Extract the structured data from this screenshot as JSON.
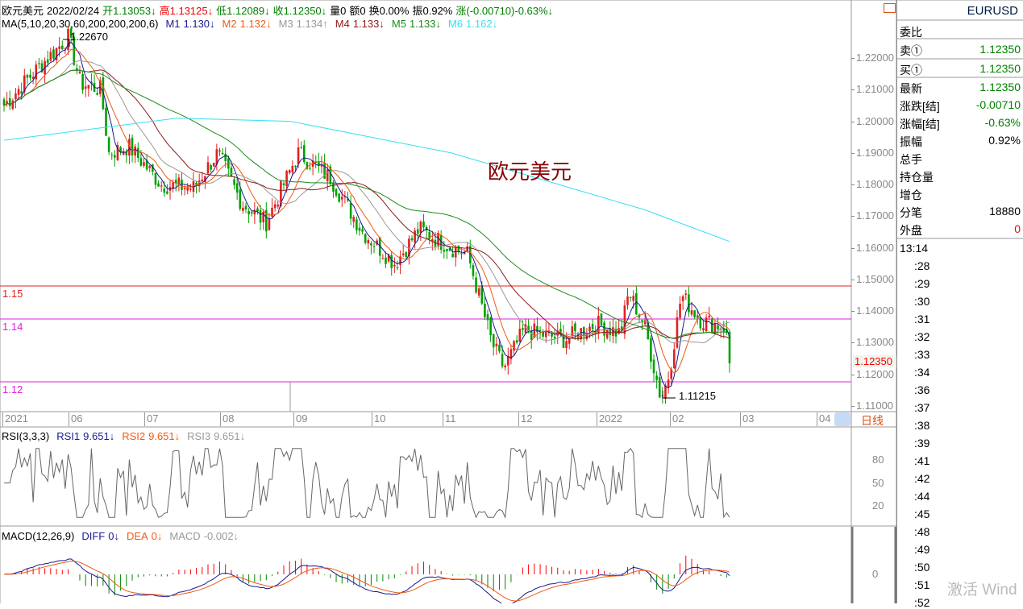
{
  "header": {
    "name": "欧元美元",
    "date": "2022/02/24",
    "open_label": "开",
    "open": "1.13053↓",
    "high_label": "高",
    "high": "1.13125↓",
    "low_label": "低",
    "low": "1.12089↓",
    "close_label": "收",
    "close": "1.12350↓",
    "volume": "量0",
    "amount": "额0",
    "turnover": "换0.00%",
    "amplitude": "振0.92%",
    "change_label": "涨",
    "change": "(-0.00710)-0.63%↓"
  },
  "ma": {
    "label": "MA(5,10,20,30,60,200,200,200,6)",
    "items": [
      {
        "name": "M1",
        "value": "1.130↓",
        "color": "#1a1a8c"
      },
      {
        "name": "M2",
        "value": "1.132↓",
        "color": "#f05a14"
      },
      {
        "name": "M3",
        "value": "1.134↑",
        "color": "#999999"
      },
      {
        "name": "M4",
        "value": "1.133↓",
        "color": "#8b1a1a"
      },
      {
        "name": "M5",
        "value": "1.133↓",
        "color": "#1a8c1a"
      },
      {
        "name": "M6",
        "value": "1.162↓",
        "color": "#33e0f0"
      }
    ]
  },
  "rsi": {
    "label": "RSI(3,3,3)",
    "items": [
      {
        "name": "RSI1",
        "value": "9.651↓",
        "color": "#1a1a8c"
      },
      {
        "name": "RSI2",
        "value": "9.651↓",
        "color": "#f05a14"
      },
      {
        "name": "RSI3",
        "value": "9.651↓",
        "color": "#999999"
      }
    ],
    "ticks": [
      "80",
      "50",
      "20"
    ]
  },
  "macd": {
    "label": "MACD(12,26,9)",
    "items": [
      {
        "name": "DIFF",
        "value": "0↓",
        "color": "#1a1a8c"
      },
      {
        "name": "DEA",
        "value": "0↓",
        "color": "#f05a14"
      },
      {
        "name": "MACD",
        "value": "-0.002↓",
        "color": "#999999"
      }
    ],
    "ticks": [
      "0"
    ]
  },
  "price_axis": [
    "1.22000",
    "1.21000",
    "1.20000",
    "1.19000",
    "1.18000",
    "1.17000",
    "1.16000",
    "1.15000",
    "1.14000",
    "1.13000",
    "1.12000",
    "1.11000"
  ],
  "last_price_tag": "1.12350",
  "time_axis": [
    "2021",
    "06",
    "07",
    "08",
    "09",
    "10",
    "11",
    "12",
    "2022",
    "02",
    "03",
    "04"
  ],
  "period": "日线",
  "watermark_title": "欧元美元",
  "annotations": {
    "high": "1.22670",
    "low": "1.11215"
  },
  "hlines": [
    {
      "label": "1.15",
      "color": "#e02020"
    },
    {
      "label": "1.14",
      "color": "#e020e0"
    },
    {
      "label": "1.12",
      "color": "#e020e0"
    }
  ],
  "panel": {
    "symbol": "EURUSD",
    "rows": [
      {
        "label": "委比",
        "value": ""
      },
      {
        "label": "卖①",
        "value": "1.12350",
        "color": "#008000"
      },
      {
        "label": "买①",
        "value": "1.12350",
        "color": "#008000"
      },
      {
        "label": "最新",
        "value": "1.12350",
        "color": "#008000"
      },
      {
        "label": "涨跌[结]",
        "value": "-0.00710",
        "color": "#008000"
      },
      {
        "label": "涨幅[结]",
        "value": "-0.63%",
        "color": "#008000"
      },
      {
        "label": "振幅",
        "value": "0.92%",
        "color": "#000000"
      },
      {
        "label": "总手",
        "value": ""
      },
      {
        "label": "持仓量",
        "value": ""
      },
      {
        "label": "增仓",
        "value": ""
      },
      {
        "label": "分笔",
        "value": "18880",
        "color": "#000000"
      },
      {
        "label": "外盘",
        "value": "0",
        "color": "#ff0000"
      }
    ],
    "times": [
      "13:14",
      ":28",
      ":29",
      ":30",
      ":31",
      ":32",
      ":33",
      ":34",
      ":36",
      ":37",
      ":38",
      ":39",
      ":41",
      ":42",
      ":44",
      ":45",
      ":48",
      ":49",
      ":50",
      ":51",
      ":52"
    ]
  },
  "watermark": "激活 Wind",
  "chart_data": {
    "type": "candlestick",
    "ylim": [
      1.11,
      1.225
    ],
    "close_path": [
      [
        "2021-05",
        1.205
      ],
      [
        "2021-05",
        1.215
      ],
      [
        "2021-06",
        1.2267
      ],
      [
        "2021-06",
        1.212
      ],
      [
        "2021-06",
        1.21
      ],
      [
        "2021-06",
        1.19
      ],
      [
        "2021-07",
        1.192
      ],
      [
        "2021-07",
        1.18
      ],
      [
        "2021-08",
        1.179
      ],
      [
        "2021-08",
        1.19
      ],
      [
        "2021-08",
        1.174
      ],
      [
        "2021-08",
        1.168
      ],
      [
        "2021-09",
        1.19
      ],
      [
        "2021-09",
        1.182
      ],
      [
        "2021-10",
        1.165
      ],
      [
        "2021-10",
        1.155
      ],
      [
        "2021-10",
        1.166
      ],
      [
        "2021-11",
        1.16
      ],
      [
        "2021-11",
        1.158
      ],
      [
        "2021-11",
        1.13
      ],
      [
        "2021-11",
        1.122
      ],
      [
        "2021-12",
        1.134
      ],
      [
        "2021-12",
        1.131
      ],
      [
        "2022-01",
        1.136
      ],
      [
        "2022-01",
        1.133
      ],
      [
        "2022-01",
        1.146
      ],
      [
        "2022-01",
        1.135
      ],
      [
        "2022-01",
        1.11215
      ],
      [
        "2022-02",
        1.12
      ],
      [
        "2022-02",
        1.145
      ],
      [
        "2022-02",
        1.137
      ],
      [
        "2022-02",
        1.135
      ],
      [
        "2022-02-24",
        1.1235
      ]
    ],
    "ma200_path": [
      1.194,
      1.201,
      1.2,
      1.19,
      1.172,
      1.162
    ]
  }
}
